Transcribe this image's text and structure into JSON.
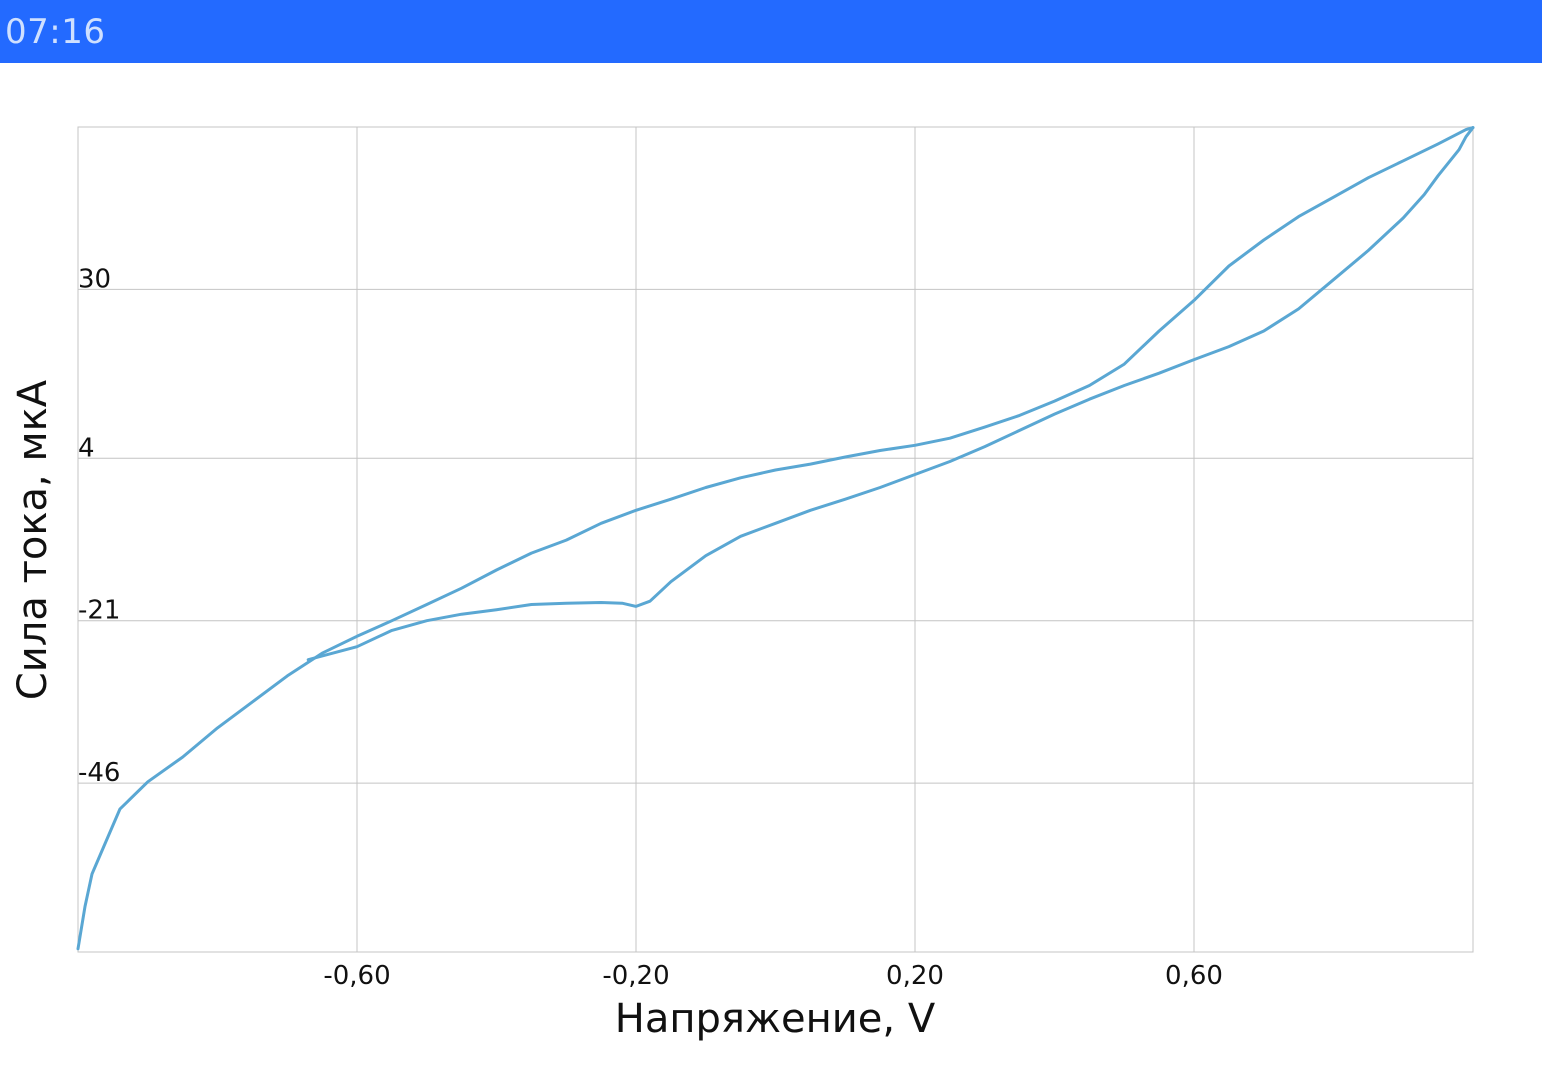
{
  "status_bar": {
    "time": "07:16",
    "color": "#236aff"
  },
  "chart_data": {
    "type": "line",
    "title": "",
    "xlabel": "Напряжение, V",
    "ylabel": "Сила тока, мкА",
    "xlim": [
      -1.0,
      1.0
    ],
    "ylim": [
      -72,
      55
    ],
    "x_ticks": [
      -0.6,
      -0.2,
      0.2,
      0.6
    ],
    "x_tick_labels": [
      "-0,60",
      "-0,20",
      "0,20",
      "0,60"
    ],
    "y_ticks": [
      -46,
      -21,
      4,
      30
    ],
    "y_tick_labels": [
      "-46",
      "-21",
      "4",
      "30"
    ],
    "grid": true,
    "line_color": "#5aa7d3",
    "series": [
      {
        "x": [
          -0.67,
          -0.6,
          -0.55,
          -0.5,
          -0.45,
          -0.4,
          -0.35,
          -0.3,
          -0.25,
          -0.22,
          -0.2,
          -0.18,
          -0.15,
          -0.1,
          -0.05,
          0.0,
          0.05,
          0.1,
          0.15,
          0.2,
          0.25,
          0.3,
          0.35,
          0.4,
          0.45,
          0.5,
          0.55,
          0.6,
          0.65,
          0.7,
          0.75,
          0.8,
          0.85,
          0.9,
          0.93,
          0.95,
          0.98,
          0.99,
          1.0
        ],
        "y": [
          -27,
          -25,
          -22.5,
          -21,
          -20,
          -19.3,
          -18.5,
          -18.3,
          -18.2,
          -18.3,
          -18.8,
          -18,
          -15,
          -11,
          -8,
          -6,
          -4,
          -2.3,
          -0.5,
          1.5,
          3.5,
          5.8,
          8.3,
          10.8,
          13.1,
          15.2,
          17.1,
          19.2,
          21.2,
          23.6,
          27,
          31.5,
          36,
          41,
          44.6,
          47.5,
          51.5,
          53.5,
          54.9
        ]
      },
      {
        "x": [
          1.0,
          0.99,
          0.95,
          0.9,
          0.85,
          0.8,
          0.75,
          0.7,
          0.65,
          0.6,
          0.55,
          0.5,
          0.45,
          0.4,
          0.35,
          0.3,
          0.25,
          0.2,
          0.15,
          0.1,
          0.05,
          0.0,
          -0.05,
          -0.1,
          -0.15,
          -0.2,
          -0.25,
          -0.3,
          -0.35,
          -0.4,
          -0.45,
          -0.5,
          -0.55,
          -0.6,
          -0.65,
          -0.7,
          -0.75,
          -0.8,
          -0.85,
          -0.9,
          -0.94,
          -0.96,
          -0.98,
          -0.99,
          -1.0
        ],
        "y": [
          54.9,
          54.6,
          52.4,
          49.8,
          47.2,
          44.2,
          41.2,
          37.6,
          33.6,
          28.3,
          23.6,
          18.5,
          15.2,
          12.8,
          10.6,
          8.8,
          7.1,
          6.0,
          5.2,
          4.2,
          3.1,
          2.2,
          1.0,
          -0.5,
          -2.3,
          -4.0,
          -6.0,
          -8.6,
          -10.6,
          -13.2,
          -16.0,
          -18.5,
          -21.0,
          -23.4,
          -26.0,
          -29.5,
          -33.5,
          -37.5,
          -42.0,
          -45.8,
          -50.0,
          -55.0,
          -60.0,
          -65.0,
          -71.5
        ]
      }
    ]
  }
}
